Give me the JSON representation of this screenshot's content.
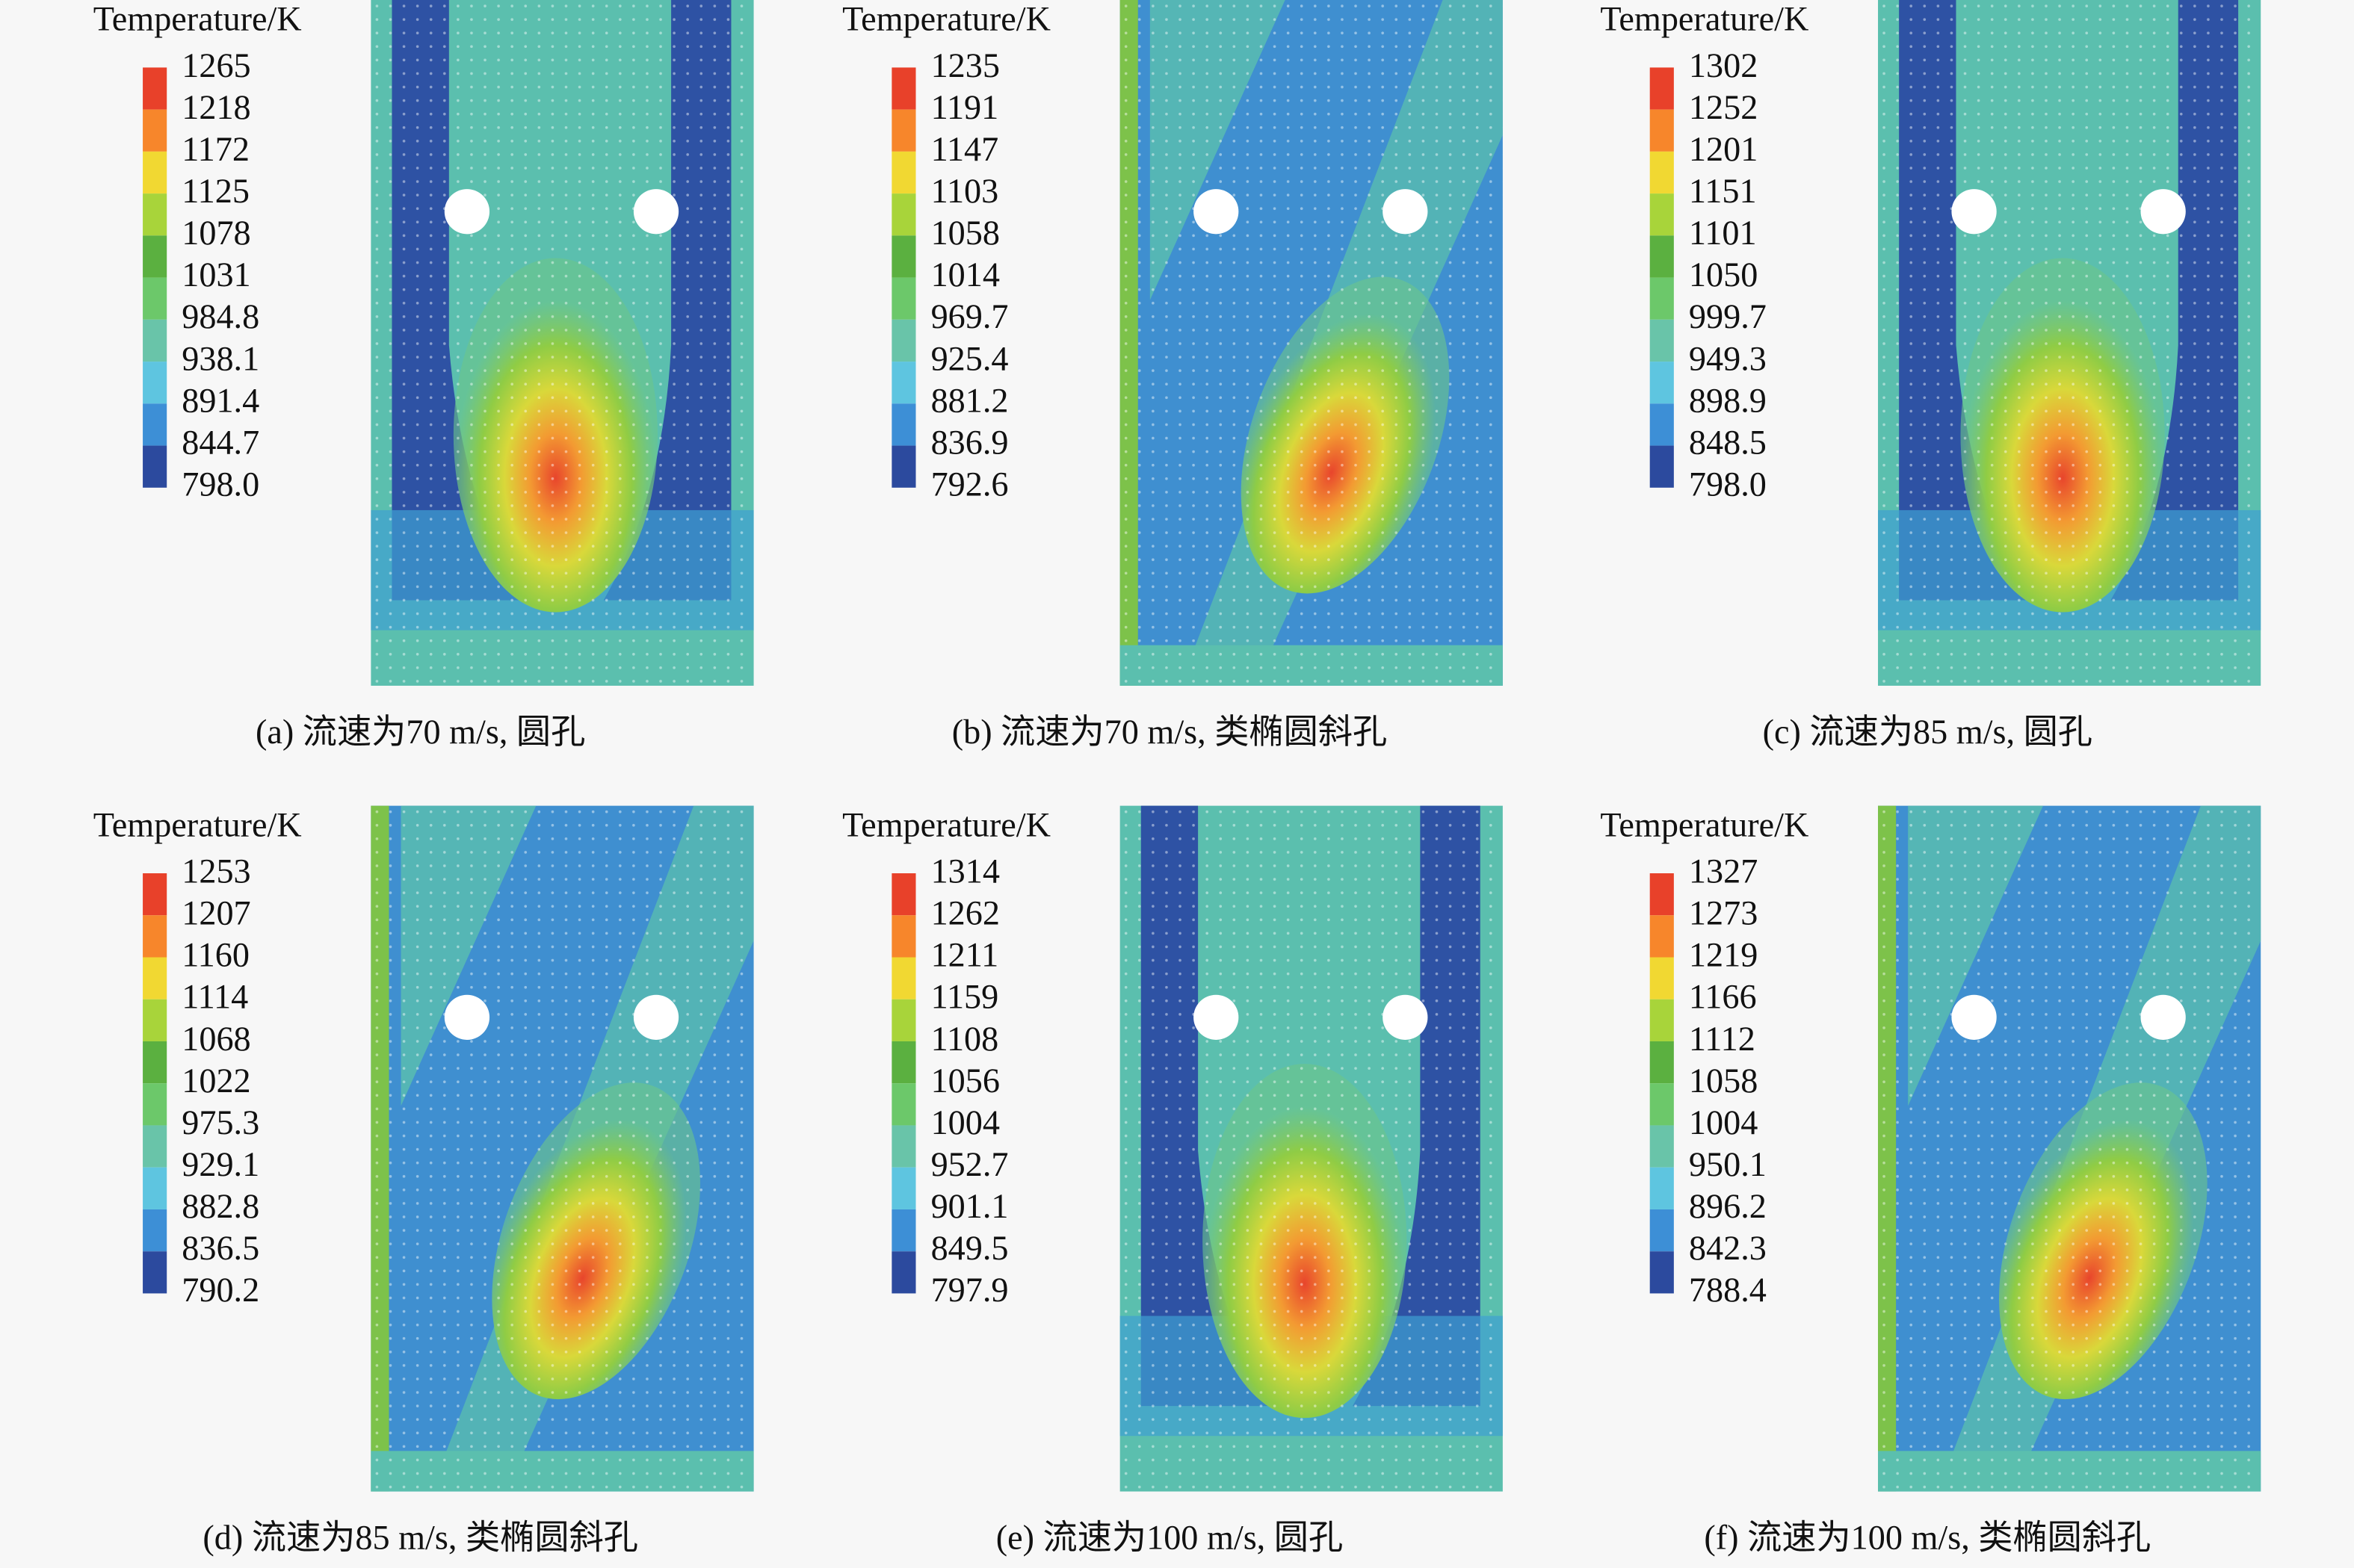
{
  "panels": [
    {
      "legend_title": "Temperature/K",
      "legend_labels": [
        "1265",
        "1218",
        "1172",
        "1125",
        "1078",
        "1031",
        "984.8",
        "938.1",
        "891.4",
        "844.7",
        "798.0"
      ],
      "caption": "(a) 流速为70 m/s, 圆孔"
    },
    {
      "legend_title": "Temperature/K",
      "legend_labels": [
        "1235",
        "1191",
        "1147",
        "1103",
        "1058",
        "1014",
        "969.7",
        "925.4",
        "881.2",
        "836.9",
        "792.6"
      ],
      "caption": "(b) 流速为70 m/s, 类椭圆斜孔"
    },
    {
      "legend_title": "Temperature/K",
      "legend_labels": [
        "1302",
        "1252",
        "1201",
        "1151",
        "1101",
        "1050",
        "999.7",
        "949.3",
        "898.9",
        "848.5",
        "798.0"
      ],
      "caption": "(c) 流速为85 m/s, 圆孔"
    },
    {
      "legend_title": "Temperature/K",
      "legend_labels": [
        "1253",
        "1207",
        "1160",
        "1114",
        "1068",
        "1022",
        "975.3",
        "929.1",
        "882.8",
        "836.5",
        "790.2"
      ],
      "caption": "(d) 流速为85 m/s, 类椭圆斜孔"
    },
    {
      "legend_title": "Temperature/K",
      "legend_labels": [
        "1314",
        "1262",
        "1211",
        "1159",
        "1108",
        "1056",
        "1004",
        "952.7",
        "901.1",
        "849.5",
        "797.9"
      ],
      "caption": "(e) 流速为100 m/s, 圆孔"
    },
    {
      "legend_title": "Temperature/K",
      "legend_labels": [
        "1327",
        "1273",
        "1219",
        "1166",
        "1112",
        "1058",
        "1004",
        "950.1",
        "896.2",
        "842.3",
        "788.4"
      ],
      "caption": "(f) 流速为100 m/s, 类椭圆斜孔"
    }
  ]
}
